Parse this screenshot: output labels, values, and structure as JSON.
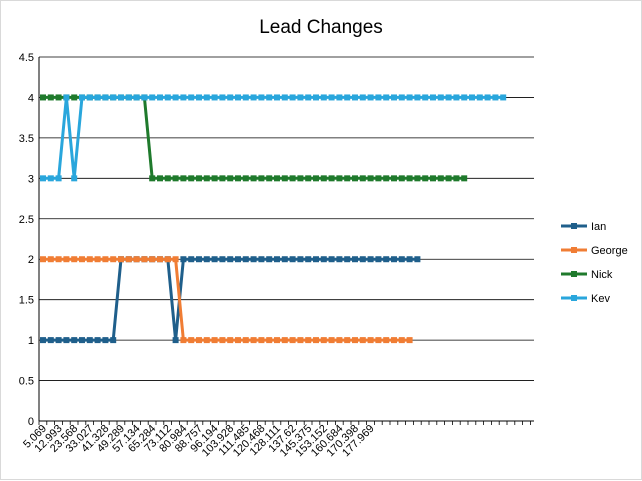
{
  "chart_data": {
    "type": "line",
    "title": "Lead Changes",
    "xlabel": "",
    "ylabel": "",
    "ylim": [
      0,
      4.5
    ],
    "yticks": [
      "0",
      "0.5",
      "1",
      "1.5",
      "2",
      "2.5",
      "3",
      "3.5",
      "4",
      "4.5"
    ],
    "x_labels": [
      "5.069",
      "12.993",
      "23.568",
      "33.027",
      "41.328",
      "49.289",
      "57.134",
      "65.284",
      "73.112",
      "80.984",
      "88.757",
      "96.194",
      "103.928",
      "111.485",
      "120.468",
      "128.111",
      "137.62",
      "145.375",
      "153.152",
      "160.684",
      "170.398",
      "177.969"
    ],
    "grid": true,
    "legend_position": "right",
    "series": [
      {
        "name": "Ian",
        "color": "#1f5f8b",
        "values": [
          1,
          1,
          1,
          1,
          1,
          1,
          1,
          1,
          1,
          1,
          2,
          2,
          2,
          2,
          2,
          2,
          2,
          1,
          2,
          2,
          2,
          2,
          2,
          2,
          2,
          2,
          2,
          2,
          2,
          2,
          2,
          2,
          2,
          2,
          2,
          2,
          2,
          2,
          2,
          2,
          2,
          2,
          2,
          2,
          2,
          2,
          2,
          2,
          2
        ]
      },
      {
        "name": "George",
        "color": "#f07d34",
        "values": [
          2,
          2,
          2,
          2,
          2,
          2,
          2,
          2,
          2,
          2,
          2,
          2,
          2,
          2,
          2,
          2,
          2,
          2,
          1,
          1,
          1,
          1,
          1,
          1,
          1,
          1,
          1,
          1,
          1,
          1,
          1,
          1,
          1,
          1,
          1,
          1,
          1,
          1,
          1,
          1,
          1,
          1,
          1,
          1,
          1,
          1,
          1,
          1
        ]
      },
      {
        "name": "Nick",
        "color": "#1f7a2c",
        "values": [
          4,
          4,
          4,
          4,
          4,
          4,
          4,
          4,
          4,
          4,
          4,
          4,
          4,
          4,
          3,
          3,
          3,
          3,
          3,
          3,
          3,
          3,
          3,
          3,
          3,
          3,
          3,
          3,
          3,
          3,
          3,
          3,
          3,
          3,
          3,
          3,
          3,
          3,
          3,
          3,
          3,
          3,
          3,
          3,
          3,
          3,
          3,
          3,
          3,
          3,
          3,
          3,
          3,
          3,
          3
        ]
      },
      {
        "name": "Kev",
        "color": "#29a6dc",
        "values": [
          3,
          3,
          3,
          4,
          3,
          4,
          4,
          4,
          4,
          4,
          4,
          4,
          4,
          4,
          4,
          4,
          4,
          4,
          4,
          4,
          4,
          4,
          4,
          4,
          4,
          4,
          4,
          4,
          4,
          4,
          4,
          4,
          4,
          4,
          4,
          4,
          4,
          4,
          4,
          4,
          4,
          4,
          4,
          4,
          4,
          4,
          4,
          4,
          4,
          4,
          4,
          4,
          4,
          4,
          4,
          4,
          4,
          4,
          4,
          4
        ]
      }
    ]
  }
}
